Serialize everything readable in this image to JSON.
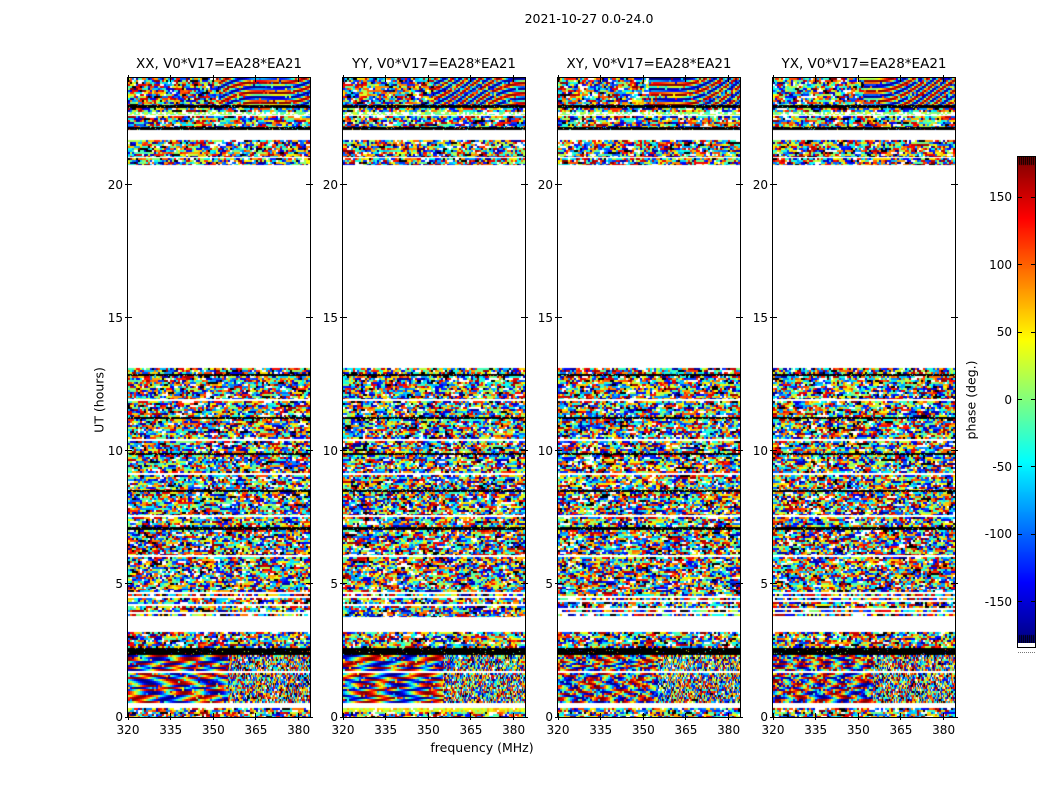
{
  "figure": {
    "title": "2021-10-27 0.0-24.0",
    "background": "#ffffff"
  },
  "panels": [
    {
      "title": "XX, V0*V17=EA28*EA21"
    },
    {
      "title": "YY, V0*V17=EA28*EA21"
    },
    {
      "title": "XY, V0*V17=EA28*EA21"
    },
    {
      "title": "YX, V0*V17=EA28*EA21"
    }
  ],
  "axes": {
    "xlabel": "frequency (MHz)",
    "ylabel": "UT (hours)",
    "xticks": [
      320,
      335,
      350,
      365,
      380
    ],
    "xtick_labels": [
      "320",
      "335",
      "350",
      "365",
      "380"
    ],
    "yticks": [
      0,
      5,
      10,
      15,
      20
    ],
    "ytick_labels": [
      "0",
      "5",
      "10",
      "15",
      "20"
    ],
    "xlim": [
      320,
      384
    ],
    "ylim": [
      0,
      24
    ]
  },
  "colorbar": {
    "label": "phase (deg.)",
    "ticks": [
      150,
      100,
      50,
      0,
      -50,
      -100,
      -150
    ],
    "tick_labels": [
      "150",
      "100",
      "50",
      "0",
      "-50",
      "-100",
      "-150"
    ],
    "vmin": -180,
    "vmax": 180,
    "colormap": "jet"
  },
  "chart_data": {
    "type": "heatmap",
    "title": "2021-10-27 0.0-24.0",
    "panels": [
      {
        "polarization": "XX",
        "baseline": "V0*V17=EA28*EA21"
      },
      {
        "polarization": "YY",
        "baseline": "V0*V17=EA28*EA21"
      },
      {
        "polarization": "XY",
        "baseline": "V0*V17=EA28*EA21"
      },
      {
        "polarization": "YX",
        "baseline": "V0*V17=EA28*EA21"
      }
    ],
    "x_axis": {
      "label": "frequency (MHz)",
      "range": [
        320,
        384
      ],
      "ticks": [
        320,
        335,
        350,
        365,
        380
      ]
    },
    "y_axis": {
      "label": "UT (hours)",
      "range": [
        0,
        24
      ],
      "ticks": [
        0,
        5,
        10,
        15,
        20
      ]
    },
    "value": {
      "label": "phase (deg.)",
      "range": [
        -180,
        180
      ],
      "colormap": "jet",
      "colorbar_ticks": [
        150,
        100,
        50,
        0,
        -50,
        -100,
        -150
      ]
    },
    "data_gap_ut_hours": [
      13.1,
      20.7
    ],
    "description": "Random-looking visibility phase noise (uniform -180..180 deg) in horizontal time bands; flagged black rows and blank white rows; large blank gap between UT 13.1 and 20.7; smooth rainbow fringe patterns near the top of each panel and diagonal fringes in XX/YY near UT 1-2.3; YY shows a bright yellow-green band near UT 0.2-0.35.",
    "bands": [
      {
        "from": 24.0,
        "to": 23.0,
        "type": "fringe_top"
      },
      {
        "from": 23.0,
        "to": 22.87,
        "type": "black"
      },
      {
        "from": 22.87,
        "to": 22.72,
        "type": "noise"
      },
      {
        "from": 22.72,
        "to": 22.62,
        "type": "cyan"
      },
      {
        "from": 22.62,
        "to": 22.57,
        "type": "white"
      },
      {
        "from": 22.57,
        "to": 22.16,
        "type": "noise"
      },
      {
        "from": 22.16,
        "to": 22.04,
        "type": "black"
      },
      {
        "from": 22.04,
        "to": 21.67,
        "type": "white"
      },
      {
        "from": 21.67,
        "to": 21.05,
        "type": "noise"
      },
      {
        "from": 21.05,
        "to": 20.98,
        "type": "white"
      },
      {
        "from": 20.98,
        "to": 20.73,
        "type": "noise"
      },
      {
        "from": 20.73,
        "to": 13.11,
        "type": "white"
      },
      {
        "from": 13.11,
        "to": 12.88,
        "type": "noise"
      },
      {
        "from": 12.88,
        "to": 12.82,
        "type": "black"
      },
      {
        "from": 12.82,
        "to": 11.95,
        "type": "noise"
      },
      {
        "from": 11.95,
        "to": 11.87,
        "type": "white"
      },
      {
        "from": 11.87,
        "to": 11.28,
        "type": "noise"
      },
      {
        "from": 11.28,
        "to": 11.2,
        "type": "black"
      },
      {
        "from": 11.2,
        "to": 10.43,
        "type": "noise"
      },
      {
        "from": 10.43,
        "to": 10.35,
        "type": "white"
      },
      {
        "from": 10.35,
        "to": 9.93,
        "type": "noise"
      },
      {
        "from": 9.93,
        "to": 9.85,
        "type": "black"
      },
      {
        "from": 9.85,
        "to": 9.18,
        "type": "noise"
      },
      {
        "from": 9.18,
        "to": 9.1,
        "type": "white"
      },
      {
        "from": 9.1,
        "to": 8.53,
        "type": "noise"
      },
      {
        "from": 8.53,
        "to": 8.45,
        "type": "black"
      },
      {
        "from": 8.45,
        "to": 7.58,
        "type": "noise"
      },
      {
        "from": 7.58,
        "to": 7.5,
        "type": "white"
      },
      {
        "from": 7.5,
        "to": 7.13,
        "type": "noise"
      },
      {
        "from": 7.13,
        "to": 7.03,
        "type": "black"
      },
      {
        "from": 7.03,
        "to": 6.08,
        "type": "noise"
      },
      {
        "from": 6.08,
        "to": 6.0,
        "type": "white"
      },
      {
        "from": 6.0,
        "to": 4.77,
        "type": "noise"
      },
      {
        "from": 4.77,
        "to": 3.76,
        "type": "striped"
      },
      {
        "from": 3.76,
        "to": 3.19,
        "type": "white"
      },
      {
        "from": 3.19,
        "to": 2.59,
        "type": "noise"
      },
      {
        "from": 2.59,
        "to": 2.33,
        "type": "black"
      },
      {
        "from": 2.33,
        "to": 1.73,
        "type": "fringe_diag"
      },
      {
        "from": 1.73,
        "to": 1.64,
        "type": "white"
      },
      {
        "from": 1.64,
        "to": 0.53,
        "type": "fringe_diag"
      },
      {
        "from": 0.53,
        "to": 0.34,
        "type": "white"
      },
      {
        "from": 0.34,
        "to": 0.17,
        "type": "accent"
      },
      {
        "from": 0.17,
        "to": 0.0,
        "type": "noise"
      }
    ]
  }
}
